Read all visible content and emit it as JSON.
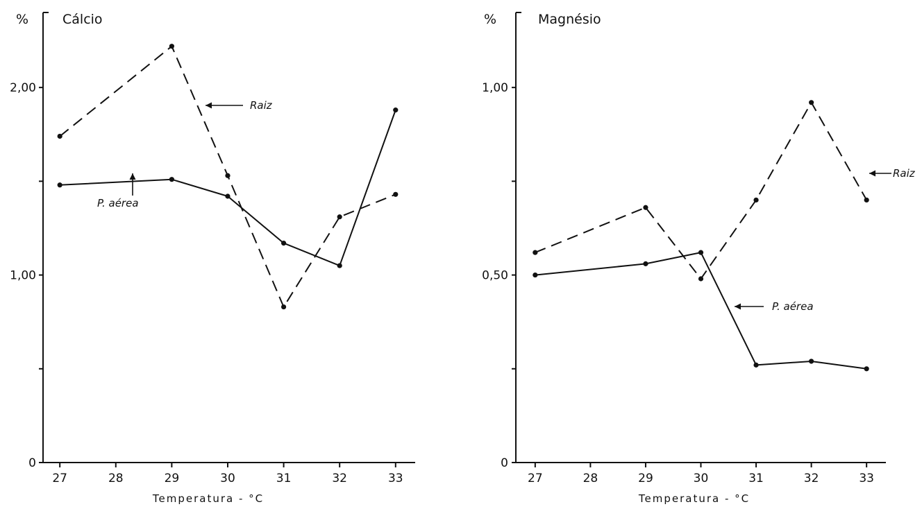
{
  "chart_data": [
    {
      "type": "line",
      "title": "Cálcio",
      "ylabel": "%",
      "xlabel": "Temperatura - °C",
      "x": [
        27,
        28,
        29,
        30,
        31,
        32,
        33
      ],
      "xlim": [
        26.7,
        33.35
      ],
      "ylim": [
        0,
        2.4
      ],
      "yticks": [
        0,
        0.5,
        1.0,
        1.5,
        2.0
      ],
      "ytick_labels": [
        "0",
        "",
        "1,00",
        "",
        "2,00"
      ],
      "grid": false,
      "series": [
        {
          "name": "Raiz",
          "style": "dashed",
          "x": [
            27,
            29,
            30,
            31,
            32,
            33
          ],
          "values": [
            1.74,
            2.22,
            1.53,
            0.83,
            1.31,
            1.43
          ]
        },
        {
          "name": "P. aérea",
          "style": "solid",
          "x": [
            27,
            29,
            30,
            31,
            32,
            33
          ],
          "values": [
            1.48,
            1.51,
            1.42,
            1.17,
            1.05,
            1.88
          ]
        }
      ],
      "annotations": [
        {
          "text": "Raiz",
          "series": 0
        },
        {
          "text": "P. aérea",
          "series": 1
        }
      ]
    },
    {
      "type": "line",
      "title": "Magnésio",
      "ylabel": "%",
      "xlabel": "Temperatura - °C",
      "x": [
        27,
        28,
        29,
        30,
        31,
        32,
        33
      ],
      "xlim": [
        26.65,
        33.35
      ],
      "ylim": [
        0,
        1.2
      ],
      "yticks": [
        0,
        0.25,
        0.5,
        0.75,
        1.0
      ],
      "ytick_labels": [
        "0",
        "",
        "0,50",
        "",
        "1,00"
      ],
      "grid": false,
      "series": [
        {
          "name": "Raiz",
          "style": "dashed",
          "x": [
            27,
            29,
            30,
            31,
            32,
            33
          ],
          "values": [
            0.56,
            0.68,
            0.49,
            0.7,
            0.96,
            0.7
          ]
        },
        {
          "name": "P. aérea",
          "style": "solid",
          "x": [
            27,
            29,
            30,
            31,
            32,
            33
          ],
          "values": [
            0.5,
            0.53,
            0.56,
            0.26,
            0.27,
            0.25
          ]
        }
      ],
      "annotations": [
        {
          "text": "Raiz",
          "series": 0
        },
        {
          "text": "P. aérea",
          "series": 1
        }
      ]
    }
  ]
}
